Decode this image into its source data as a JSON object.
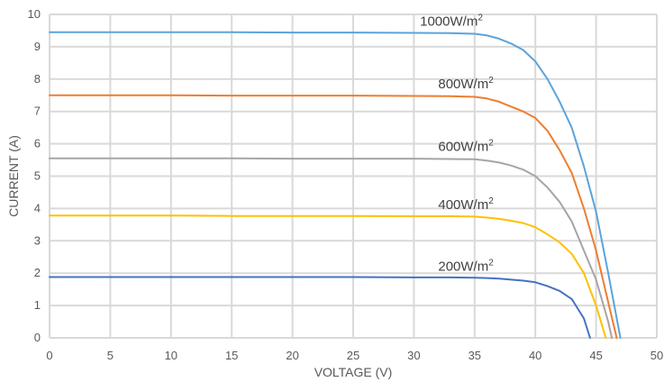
{
  "chart_data": {
    "type": "line",
    "title": "",
    "xlabel": "VOLTAGE (V)",
    "ylabel": "CURRENT (A)",
    "xlim": [
      0,
      50
    ],
    "ylim": [
      0,
      10
    ],
    "xticks": [
      0,
      5,
      10,
      15,
      20,
      25,
      30,
      35,
      40,
      45,
      50
    ],
    "yticks": [
      0,
      1,
      2,
      3,
      4,
      5,
      6,
      7,
      8,
      9,
      10
    ],
    "grid": "vertical and horizontal",
    "legend": "inline labels above curves",
    "series": [
      {
        "name": "1000W/m²",
        "name_base": "1000W/m",
        "name_sup": "2",
        "color": "#5ba3dc",
        "x": [
          0,
          5,
          10,
          15,
          20,
          25,
          30,
          33,
          35,
          36,
          37,
          38,
          39,
          40,
          41,
          42,
          43,
          44,
          45,
          46,
          47
        ],
        "y": [
          9.45,
          9.45,
          9.45,
          9.45,
          9.44,
          9.44,
          9.43,
          9.42,
          9.4,
          9.35,
          9.25,
          9.1,
          8.9,
          8.55,
          8.0,
          7.3,
          6.5,
          5.3,
          3.9,
          2.0,
          0
        ]
      },
      {
        "name": "800W/m²",
        "name_base": "800W/m",
        "name_sup": "2",
        "color": "#ed7d31",
        "x": [
          0,
          5,
          10,
          15,
          20,
          25,
          30,
          33,
          35,
          36,
          37,
          38,
          39,
          40,
          41,
          42,
          43,
          44,
          45,
          46,
          46.7
        ],
        "y": [
          7.5,
          7.5,
          7.5,
          7.49,
          7.49,
          7.49,
          7.48,
          7.47,
          7.45,
          7.4,
          7.3,
          7.15,
          7.0,
          6.8,
          6.4,
          5.8,
          5.1,
          4.0,
          2.7,
          1.1,
          0
        ]
      },
      {
        "name": "600W/m²",
        "name_base": "600W/m",
        "name_sup": "2",
        "color": "#a5a5a5",
        "x": [
          0,
          5,
          10,
          15,
          20,
          25,
          30,
          33,
          35,
          36,
          37,
          38,
          39,
          40,
          41,
          42,
          43,
          44,
          45,
          46,
          46.3
        ],
        "y": [
          5.55,
          5.55,
          5.55,
          5.55,
          5.54,
          5.54,
          5.54,
          5.53,
          5.52,
          5.48,
          5.42,
          5.33,
          5.2,
          5.0,
          4.65,
          4.2,
          3.6,
          2.7,
          1.8,
          0.5,
          0
        ]
      },
      {
        "name": "400W/m²",
        "name_base": "400W/m",
        "name_sup": "2",
        "color": "#ffc000",
        "x": [
          0,
          5,
          10,
          15,
          20,
          25,
          30,
          33,
          35,
          36,
          37,
          38,
          39,
          40,
          41,
          42,
          43,
          44,
          45,
          45.8
        ],
        "y": [
          3.78,
          3.78,
          3.78,
          3.77,
          3.77,
          3.77,
          3.76,
          3.76,
          3.75,
          3.72,
          3.68,
          3.62,
          3.55,
          3.42,
          3.2,
          2.95,
          2.6,
          2.0,
          1.0,
          0
        ]
      },
      {
        "name": "200W/m²",
        "name_base": "200W/m",
        "name_sup": "2",
        "color": "#4472c4",
        "x": [
          0,
          5,
          10,
          15,
          20,
          25,
          30,
          33,
          35,
          36,
          37,
          38,
          39,
          40,
          41,
          42,
          43,
          44,
          44.5
        ],
        "y": [
          1.88,
          1.88,
          1.88,
          1.88,
          1.88,
          1.88,
          1.87,
          1.87,
          1.86,
          1.85,
          1.83,
          1.8,
          1.77,
          1.72,
          1.6,
          1.45,
          1.2,
          0.6,
          0
        ]
      }
    ]
  }
}
